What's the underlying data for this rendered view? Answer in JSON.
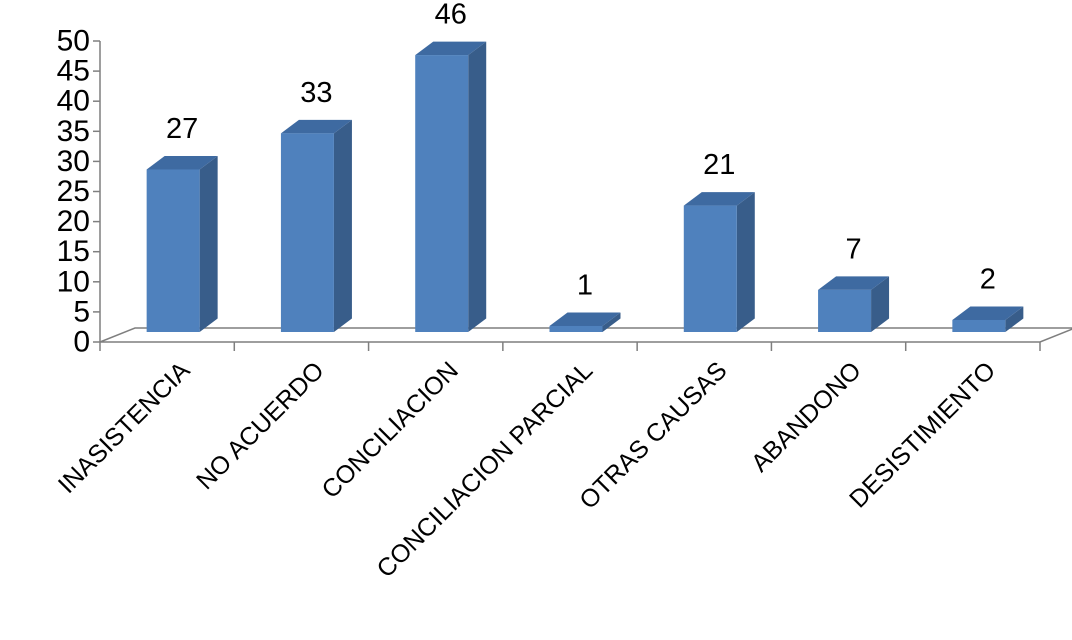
{
  "chart_data": {
    "type": "bar",
    "style": "3d-column",
    "categories": [
      "INASISTENCIA",
      "NO ACUERDO",
      "CONCILIACION",
      "CONCILIACION PARCIAL",
      "OTRAS CAUSAS",
      "ABANDONO",
      "DESISTIMIENTO"
    ],
    "values": [
      27,
      33,
      46,
      1,
      21,
      7,
      2
    ],
    "data_labels": [
      "27",
      "33",
      "46",
      "1",
      "21",
      "7",
      "2"
    ],
    "y_ticks": [
      0,
      5,
      10,
      15,
      20,
      25,
      30,
      35,
      40,
      45,
      50
    ],
    "ylim": [
      0,
      50
    ],
    "title": "",
    "xlabel": "",
    "ylabel": "",
    "grid": false,
    "legend": "none",
    "colors": {
      "front": "#4f81bd",
      "side": "#385d8a",
      "top": "#3e6aa1",
      "axis": "#7f7f7f"
    }
  }
}
